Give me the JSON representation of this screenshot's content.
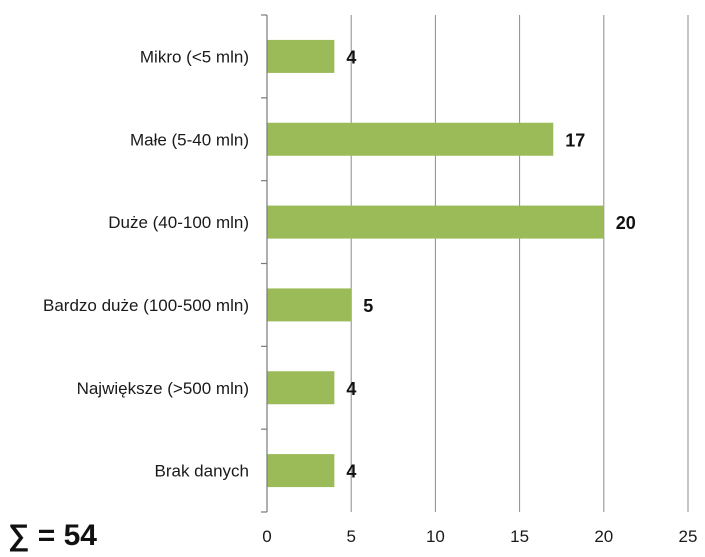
{
  "chart_data": {
    "type": "bar",
    "orientation": "horizontal",
    "categories": [
      "Mikro (<5 mln)",
      "Małe (5-40 mln)",
      "Duże (40-100 mln)",
      "Bardzo duże (100-500 mln)",
      "Największe (>500 mln)",
      "Brak danych"
    ],
    "values": [
      4,
      17,
      20,
      5,
      4,
      4
    ],
    "data_labels": [
      "4",
      "17",
      "20",
      "5",
      "4",
      "4"
    ],
    "xlim": [
      0,
      25
    ],
    "x_ticks": [
      0,
      5,
      10,
      15,
      20,
      25
    ],
    "x_tick_labels": [
      "0",
      "5",
      "10",
      "15",
      "20",
      "25"
    ],
    "grid": "vertical",
    "legend": "none",
    "bar_color": "#9bbb59",
    "title": "",
    "xlabel": "",
    "ylabel": ""
  },
  "annotation": {
    "sum_text": "∑ = 54"
  }
}
